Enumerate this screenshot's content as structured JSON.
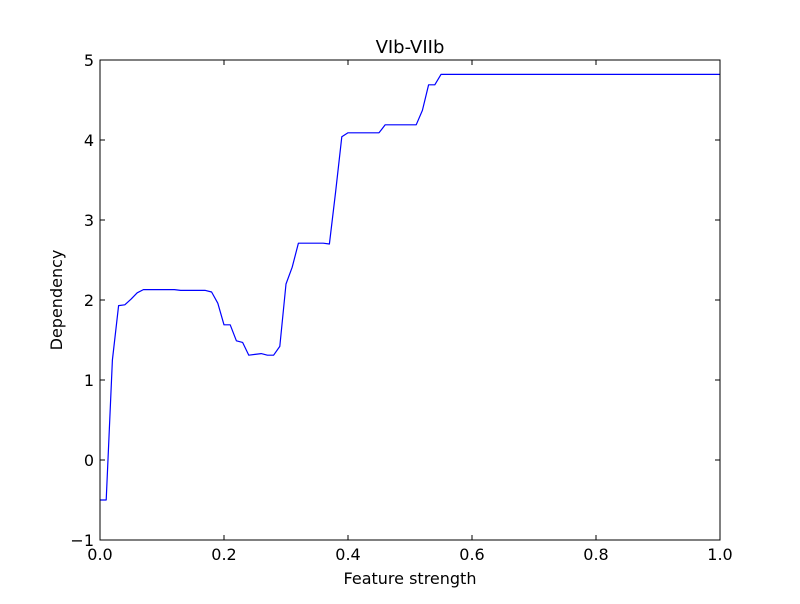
{
  "colors": {
    "line": "#0000ff",
    "axes": "#000000",
    "background": "#ffffff"
  },
  "chart_data": {
    "type": "line",
    "title": "VIb-VIIb",
    "xlabel": "Feature strength",
    "ylabel": "Dependency",
    "xlim": [
      0.0,
      1.0
    ],
    "ylim": [
      -1,
      5
    ],
    "grid": false,
    "xticks": [
      0.0,
      0.2,
      0.4,
      0.6,
      0.8,
      1.0
    ],
    "xtick_labels": [
      "0.0",
      "0.2",
      "0.4",
      "0.6",
      "0.8",
      "1.0"
    ],
    "yticks": [
      -1,
      0,
      1,
      2,
      3,
      4,
      5
    ],
    "ytick_labels": [
      "−1",
      "0",
      "1",
      "2",
      "3",
      "4",
      "5"
    ],
    "series": [
      {
        "x": [
          0.0,
          0.01,
          0.02,
          0.03,
          0.04,
          0.05,
          0.06,
          0.07,
          0.08,
          0.09,
          0.1,
          0.11,
          0.12,
          0.13,
          0.14,
          0.15,
          0.16,
          0.17,
          0.18,
          0.19,
          0.2,
          0.21,
          0.22,
          0.23,
          0.24,
          0.25,
          0.26,
          0.27,
          0.28,
          0.29,
          0.3,
          0.31,
          0.32,
          0.33,
          0.34,
          0.35,
          0.36,
          0.37,
          0.38,
          0.39,
          0.4,
          0.41,
          0.42,
          0.43,
          0.44,
          0.45,
          0.46,
          0.47,
          0.48,
          0.49,
          0.5,
          0.51,
          0.52,
          0.53,
          0.54,
          0.55,
          0.56,
          0.57,
          0.6,
          0.7,
          0.8,
          0.9,
          1.0
        ],
        "y": [
          -0.5,
          -0.5,
          1.25,
          1.93,
          1.94,
          2.01,
          2.09,
          2.13,
          2.13,
          2.13,
          2.13,
          2.13,
          2.13,
          2.12,
          2.12,
          2.12,
          2.12,
          2.12,
          2.1,
          1.96,
          1.69,
          1.69,
          1.49,
          1.47,
          1.31,
          1.32,
          1.33,
          1.31,
          1.31,
          1.42,
          2.2,
          2.41,
          2.71,
          2.71,
          2.71,
          2.71,
          2.71,
          2.7,
          3.35,
          4.04,
          4.09,
          4.09,
          4.09,
          4.09,
          4.09,
          4.09,
          4.19,
          4.19,
          4.19,
          4.19,
          4.19,
          4.19,
          4.37,
          4.69,
          4.69,
          4.82,
          4.82,
          4.82,
          4.82,
          4.82,
          4.82,
          4.82,
          4.82
        ]
      }
    ]
  }
}
